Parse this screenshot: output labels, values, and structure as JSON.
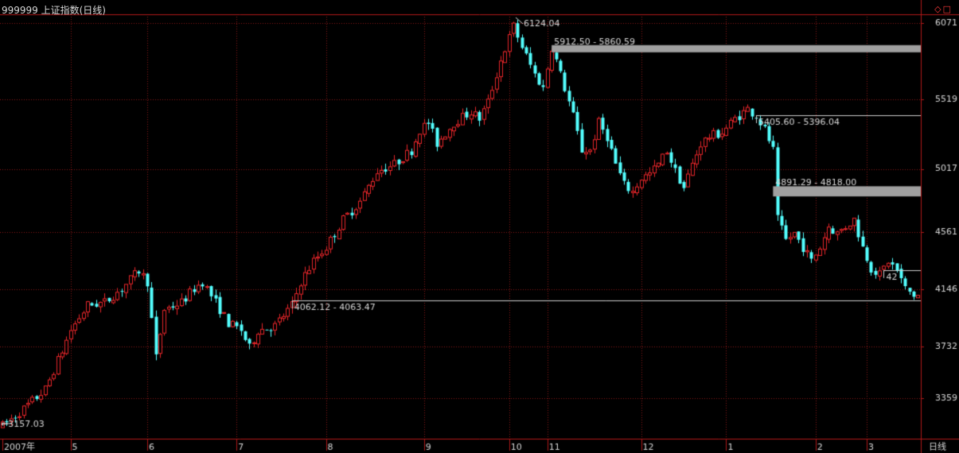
{
  "window": {
    "title": "999999 上证指数(日线)",
    "buttons": [
      "◇",
      "□"
    ]
  },
  "colors": {
    "up": "#e8262a",
    "down": "#54ffff",
    "grid": "#8b1a1a",
    "axis": "#b01818",
    "label": "#d8d8d8",
    "gap_fill": "#a0a0a0",
    "background": "#000000"
  },
  "chart_data": {
    "type": "candlestick",
    "title": "999999 上证指数(日线)",
    "period_label": "日线",
    "ylim": [
      3157,
      6124
    ],
    "y_ticks": [
      6071,
      5519,
      5017,
      4561,
      4146,
      3732,
      3359
    ],
    "x_ticks": [
      {
        "label": "2007年",
        "index": 0
      },
      {
        "label": "5",
        "index": 16
      },
      {
        "label": "6",
        "index": 34
      },
      {
        "label": "7",
        "index": 55
      },
      {
        "label": "8",
        "index": 76
      },
      {
        "label": "9",
        "index": 99
      },
      {
        "label": "10",
        "index": 119
      },
      {
        "label": "11",
        "index": 128
      },
      {
        "label": "12",
        "index": 150
      },
      {
        "label": "1",
        "index": 170
      },
      {
        "label": "2",
        "index": 191
      },
      {
        "label": "3",
        "index": 203
      }
    ],
    "annotations": [
      {
        "text": "6124.04",
        "type": "high",
        "index": 120,
        "value": 6124.04
      },
      {
        "text": "3157.03",
        "type": "low",
        "index": 0,
        "value": 3157.03
      }
    ],
    "gaps": [
      {
        "label": "5912.50 - 5860.59",
        "start_index": 129,
        "low": 5860.59,
        "high": 5912.5,
        "filled": true
      },
      {
        "label": "5405.60 - 5396.04",
        "start_index": 177,
        "low": 5396.04,
        "high": 5405.6,
        "filled": false
      },
      {
        "label": "4891.29 - 4818.00",
        "start_index": 181,
        "low": 4818.0,
        "high": 4891.29,
        "filled": true
      },
      {
        "label": "4062.12 - 4063.47",
        "start_index": 68,
        "low": 4062.12,
        "high": 4063.47,
        "filled": false
      },
      {
        "label": "42",
        "start_index": 207,
        "low": 4280,
        "high": 4285,
        "filled": false
      }
    ],
    "price_path": [
      [
        0,
        3157
      ],
      [
        5,
        3280
      ],
      [
        10,
        3420
      ],
      [
        14,
        3700
      ],
      [
        16,
        3850
      ],
      [
        20,
        4030
      ],
      [
        24,
        4050
      ],
      [
        28,
        4150
      ],
      [
        32,
        4280
      ],
      [
        34,
        4200
      ],
      [
        36,
        3650
      ],
      [
        38,
        4000
      ],
      [
        42,
        4050
      ],
      [
        45,
        4150
      ],
      [
        47,
        4200
      ],
      [
        50,
        4050
      ],
      [
        53,
        3900
      ],
      [
        56,
        3850
      ],
      [
        58,
        3720
      ],
      [
        60,
        3850
      ],
      [
        64,
        3880
      ],
      [
        68,
        4030
      ],
      [
        70,
        4200
      ],
      [
        73,
        4350
      ],
      [
        76,
        4450
      ],
      [
        80,
        4650
      ],
      [
        84,
        4780
      ],
      [
        88,
        5000
      ],
      [
        92,
        5050
      ],
      [
        96,
        5150
      ],
      [
        98,
        5300
      ],
      [
        100,
        5350
      ],
      [
        102,
        5200
      ],
      [
        106,
        5350
      ],
      [
        110,
        5430
      ],
      [
        112,
        5380
      ],
      [
        114,
        5500
      ],
      [
        117,
        5800
      ],
      [
        120,
        6050
      ],
      [
        122,
        5900
      ],
      [
        125,
        5700
      ],
      [
        127,
        5600
      ],
      [
        129,
        5900
      ],
      [
        131,
        5700
      ],
      [
        134,
        5400
      ],
      [
        136,
        5150
      ],
      [
        138,
        5150
      ],
      [
        140,
        5350
      ],
      [
        142,
        5250
      ],
      [
        144,
        5050
      ],
      [
        146,
        4900
      ],
      [
        148,
        4850
      ],
      [
        150,
        4950
      ],
      [
        152,
        4980
      ],
      [
        154,
        5050
      ],
      [
        156,
        5150
      ],
      [
        158,
        5000
      ],
      [
        160,
        4880
      ],
      [
        162,
        5050
      ],
      [
        164,
        5200
      ],
      [
        166,
        5250
      ],
      [
        169,
        5280
      ],
      [
        172,
        5380
      ],
      [
        175,
        5450
      ],
      [
        177,
        5400
      ],
      [
        179,
        5300
      ],
      [
        181,
        5150
      ],
      [
        182,
        4650
      ],
      [
        184,
        4500
      ],
      [
        186,
        4550
      ],
      [
        188,
        4450
      ],
      [
        190,
        4350
      ],
      [
        192,
        4450
      ],
      [
        194,
        4600
      ],
      [
        196,
        4550
      ],
      [
        198,
        4600
      ],
      [
        200,
        4650
      ],
      [
        202,
        4450
      ],
      [
        204,
        4300
      ],
      [
        206,
        4250
      ],
      [
        208,
        4350
      ],
      [
        210,
        4280
      ],
      [
        212,
        4150
      ],
      [
        214,
        4100
      ]
    ]
  }
}
